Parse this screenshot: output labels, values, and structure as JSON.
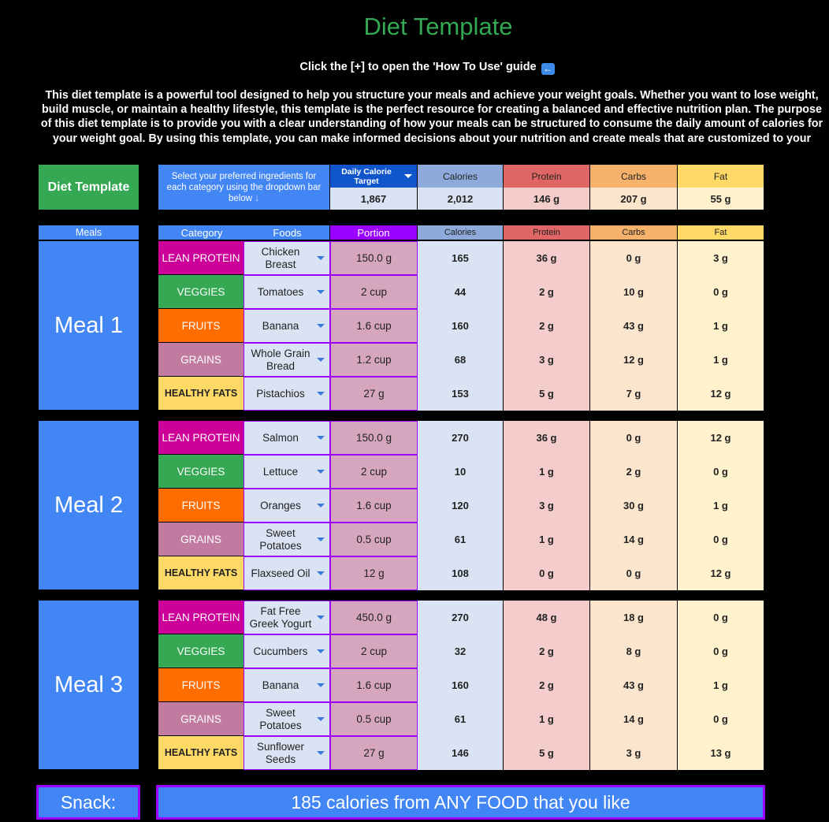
{
  "header": {
    "title": "Diet Template",
    "guide_text": "Click the [+] to open the 'How To Use' guide",
    "guide_icon": "left-arrow-icon",
    "description": "This diet template is a powerful tool designed to help you structure your meals and achieve your weight goals. Whether you want to lose weight, build muscle, or maintain a healthy lifestyle, this template is the perfect resource for creating a balanced and effective nutrition plan. The purpose of this diet template is to provide you with a clear understanding of how your meals can be structured to consume the daily amount of calories for your weight goal. By using this template, you can make informed decisions about your nutrition and create meals that are customized to your personal"
  },
  "summary": {
    "badge": "Diet Template",
    "instructions": "Select your preferred ingredients for each category using the dropdown bar below",
    "instructions_icon": "down-arrow-icon",
    "daily_target_label": "Daily Calorie Target",
    "daily_target_value": "1,867",
    "calories_label": "Calories",
    "calories_value": "2,012",
    "protein_label": "Protein",
    "protein_value": "146 g",
    "carbs_label": "Carbs",
    "carbs_value": "207 g",
    "fat_label": "Fat",
    "fat_value": "55 g"
  },
  "columns": {
    "meals": "Meals",
    "category": "Category",
    "foods": "Foods",
    "portion": "Portion",
    "calories": "Calories",
    "protein": "Protein",
    "carbs": "Carbs",
    "fat": "Fat"
  },
  "meals": [
    {
      "label": "Meal 1",
      "rows": [
        {
          "category": "LEAN PROTEIN",
          "food": "Chicken Breast",
          "portion": "150.0 g",
          "calories": "165",
          "protein": "36 g",
          "carbs": "0 g",
          "fat": "3 g"
        },
        {
          "category": "VEGGIES",
          "food": "Tomatoes",
          "portion": "2 cup",
          "calories": "44",
          "protein": "2 g",
          "carbs": "10 g",
          "fat": "0 g"
        },
        {
          "category": "FRUITS",
          "food": "Banana",
          "portion": "1.6 cup",
          "calories": "160",
          "protein": "2 g",
          "carbs": "43 g",
          "fat": "1 g"
        },
        {
          "category": "GRAINS",
          "food": "Whole Grain Bread",
          "portion": "1.2 cup",
          "calories": "68",
          "protein": "3 g",
          "carbs": "12 g",
          "fat": "1 g"
        },
        {
          "category": "HEALTHY FATS",
          "food": "Pistachios",
          "portion": "27 g",
          "calories": "153",
          "protein": "5 g",
          "carbs": "7 g",
          "fat": "12 g"
        }
      ]
    },
    {
      "label": "Meal 2",
      "rows": [
        {
          "category": "LEAN PROTEIN",
          "food": "Salmon",
          "portion": "150.0 g",
          "calories": "270",
          "protein": "36 g",
          "carbs": "0 g",
          "fat": "12 g"
        },
        {
          "category": "VEGGIES",
          "food": "Lettuce",
          "portion": "2 cup",
          "calories": "10",
          "protein": "1 g",
          "carbs": "2 g",
          "fat": "0 g"
        },
        {
          "category": "FRUITS",
          "food": "Oranges",
          "portion": "1.6 cup",
          "calories": "120",
          "protein": "3 g",
          "carbs": "30 g",
          "fat": "1 g"
        },
        {
          "category": "GRAINS",
          "food": "Sweet Potatoes",
          "portion": "0.5 cup",
          "calories": "61",
          "protein": "1 g",
          "carbs": "14 g",
          "fat": "0 g"
        },
        {
          "category": "HEALTHY FATS",
          "food": "Flaxseed Oil",
          "portion": "12 g",
          "calories": "108",
          "protein": "0 g",
          "carbs": "0 g",
          "fat": "12 g"
        }
      ]
    },
    {
      "label": "Meal 3",
      "rows": [
        {
          "category": "LEAN PROTEIN",
          "food": "Fat Free Greek Yogurt",
          "portion": "450.0 g",
          "calories": "270",
          "protein": "48 g",
          "carbs": "18 g",
          "fat": "0 g"
        },
        {
          "category": "VEGGIES",
          "food": "Cucumbers",
          "portion": "2 cup",
          "calories": "32",
          "protein": "2 g",
          "carbs": "8 g",
          "fat": "0 g"
        },
        {
          "category": "FRUITS",
          "food": "Banana",
          "portion": "1.6 cup",
          "calories": "160",
          "protein": "2 g",
          "carbs": "43 g",
          "fat": "1 g"
        },
        {
          "category": "GRAINS",
          "food": "Sweet Potatoes",
          "portion": "0.5 cup",
          "calories": "61",
          "protein": "1 g",
          "carbs": "14 g",
          "fat": "0 g"
        },
        {
          "category": "HEALTHY FATS",
          "food": "Sunflower Seeds",
          "portion": "27 g",
          "calories": "146",
          "protein": "5 g",
          "carbs": "3 g",
          "fat": "13 g"
        }
      ]
    }
  ],
  "snack": {
    "label": "Snack:",
    "text": "185 calories from ANY FOOD that you like"
  },
  "colors": {
    "title_green": "#34a853",
    "meal_blue": "#4285f4",
    "portion_border_purple": "#9900ff",
    "lean_protein": "#cc0099",
    "veggies": "#34a853",
    "fruits": "#ff6d01",
    "grains": "#c27ba0",
    "healthy_fats": "#ffd966"
  }
}
